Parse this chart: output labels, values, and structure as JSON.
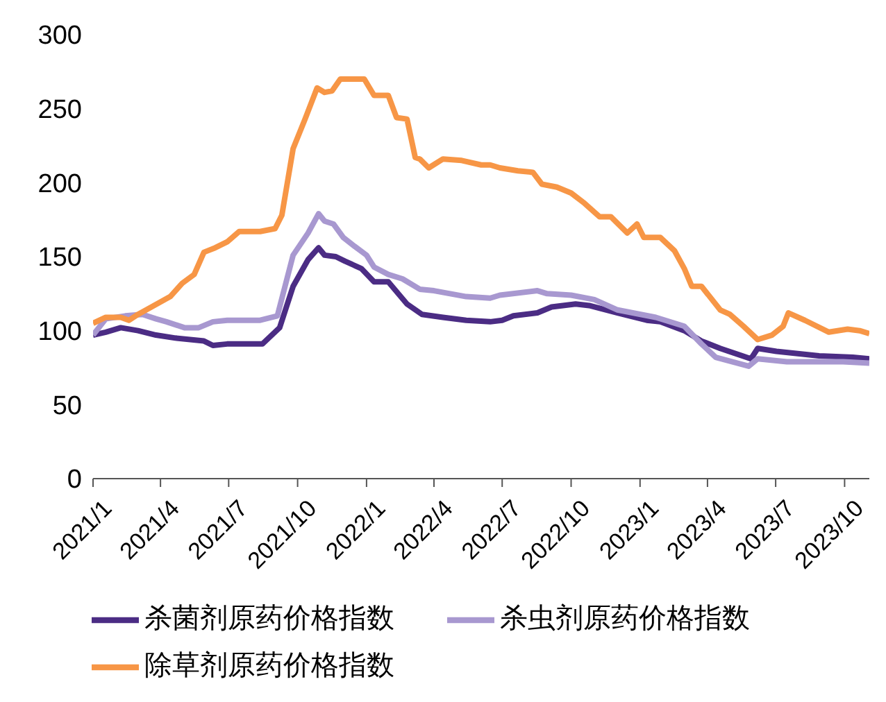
{
  "chart_data": {
    "type": "line",
    "legend": "bottom",
    "marker": "none",
    "line_style": "solid",
    "xlim": [
      "2021-01-01",
      "2023-11-03"
    ],
    "xticks": [
      {
        "value": "2021-01",
        "label": "2021/1"
      },
      {
        "value": "2021-04",
        "label": "2021/4"
      },
      {
        "value": "2021-07",
        "label": "2021/7"
      },
      {
        "value": "2021-10",
        "label": "2021/10"
      },
      {
        "value": "2022-01",
        "label": "2022/1"
      },
      {
        "value": "2022-04",
        "label": "2022/4"
      },
      {
        "value": "2022-07",
        "label": "2022/7"
      },
      {
        "value": "2022-10",
        "label": "2022/10"
      },
      {
        "value": "2023-01",
        "label": "2023/1"
      },
      {
        "value": "2023-04",
        "label": "2023/4"
      },
      {
        "value": "2023-07",
        "label": "2023/7"
      },
      {
        "value": "2023-10",
        "label": "2023/10"
      }
    ],
    "ylim": [
      0,
      300
    ],
    "yticks": [
      0,
      50,
      100,
      150,
      200,
      250,
      300
    ],
    "series": [
      {
        "name": "杀菌剂原药价格指数",
        "color": "#4b2c84",
        "x": [
          "2021-01-01",
          "2021-01-18",
          "2021-02-07",
          "2021-03-02",
          "2021-03-26",
          "2021-04-21",
          "2021-05-29",
          "2021-06-10",
          "2021-06-29",
          "2021-08-15",
          "2021-09-07",
          "2021-09-25",
          "2021-10-15",
          "2021-10-29",
          "2021-11-06",
          "2021-11-21",
          "2021-12-03",
          "2021-12-25",
          "2022-01-11",
          "2022-01-30",
          "2022-02-24",
          "2022-03-16",
          "2022-04-13",
          "2022-05-14",
          "2022-06-15",
          "2022-07-01",
          "2022-07-16",
          "2022-08-17",
          "2022-09-05",
          "2022-10-07",
          "2022-10-25",
          "2022-12-02",
          "2023-01-10",
          "2023-01-28",
          "2023-03-01",
          "2023-03-24",
          "2023-04-18",
          "2023-05-29",
          "2023-06-07",
          "2023-07-02",
          "2023-08-28",
          "2023-10-12",
          "2023-11-03"
        ],
        "values": [
          97,
          99,
          102,
          100,
          97,
          95,
          93,
          90,
          91,
          91,
          102,
          130,
          148,
          156,
          151,
          150,
          147,
          142,
          133,
          133,
          118,
          111,
          109,
          107,
          106,
          107,
          110,
          112,
          116,
          118,
          117,
          112,
          107,
          106,
          100,
          93,
          88,
          81,
          88,
          86,
          83,
          82,
          81
        ]
      },
      {
        "name": "杀虫剂原药价格指数",
        "color": "#a898d0",
        "x": [
          "2021-01-01",
          "2021-01-18",
          "2021-02-13",
          "2021-03-08",
          "2021-03-26",
          "2021-04-09",
          "2021-05-03",
          "2021-05-22",
          "2021-06-10",
          "2021-06-29",
          "2021-08-12",
          "2021-09-04",
          "2021-09-25",
          "2021-10-15",
          "2021-10-29",
          "2021-11-06",
          "2021-11-18",
          "2021-12-01",
          "2021-12-16",
          "2022-01-01",
          "2022-01-11",
          "2022-01-30",
          "2022-02-18",
          "2022-03-13",
          "2022-04-01",
          "2022-05-14",
          "2022-06-15",
          "2022-06-28",
          "2022-08-17",
          "2022-08-30",
          "2022-10-01",
          "2022-11-01",
          "2022-12-02",
          "2023-01-22",
          "2023-03-01",
          "2023-03-24",
          "2023-04-12",
          "2023-05-26",
          "2023-06-07",
          "2023-07-16",
          "2023-09-29",
          "2023-11-03"
        ],
        "values": [
          97,
          108,
          110,
          111,
          108,
          106,
          102,
          102,
          106,
          107,
          107,
          110,
          151,
          166,
          179,
          174,
          172,
          163,
          157,
          151,
          143,
          138,
          135,
          128,
          127,
          123,
          122,
          124,
          127,
          125,
          124,
          121,
          114,
          109,
          103,
          91,
          82,
          76,
          81,
          79,
          79,
          78
        ]
      },
      {
        "name": "除草剂原药价格指数",
        "color": "#f79646",
        "x": [
          "2021-01-01",
          "2021-01-18",
          "2021-02-07",
          "2021-02-18",
          "2021-03-02",
          "2021-03-20",
          "2021-04-14",
          "2021-04-30",
          "2021-05-16",
          "2021-05-29",
          "2021-06-13",
          "2021-06-29",
          "2021-07-15",
          "2021-08-12",
          "2021-09-01",
          "2021-09-10",
          "2021-09-25",
          "2021-10-11",
          "2021-10-27",
          "2021-11-06",
          "2021-11-16",
          "2021-11-27",
          "2021-12-29",
          "2022-01-11",
          "2022-01-30",
          "2022-02-10",
          "2022-02-24",
          "2022-03-07",
          "2022-03-13",
          "2022-03-25",
          "2022-04-13",
          "2022-05-08",
          "2022-06-03",
          "2022-06-15",
          "2022-06-28",
          "2022-07-22",
          "2022-08-11",
          "2022-08-23",
          "2022-09-12",
          "2022-10-01",
          "2022-10-19",
          "2022-11-08",
          "2022-11-23",
          "2022-12-15",
          "2022-12-28",
          "2023-01-06",
          "2023-01-28",
          "2023-02-16",
          "2023-03-01",
          "2023-03-11",
          "2023-03-24",
          "2023-04-18",
          "2023-05-01",
          "2023-05-19",
          "2023-06-07",
          "2023-06-26",
          "2023-07-11",
          "2023-07-18",
          "2023-08-09",
          "2023-09-10",
          "2023-10-05",
          "2023-10-21",
          "2023-11-03"
        ],
        "values": [
          105,
          109,
          109,
          107,
          111,
          116,
          123,
          132,
          138,
          153,
          156,
          160,
          167,
          167,
          169,
          178,
          223,
          243,
          264,
          261,
          262,
          270,
          270,
          259,
          259,
          244,
          243,
          217,
          216,
          210,
          216,
          215,
          212,
          212,
          210,
          208,
          207,
          199,
          197,
          193,
          186,
          177,
          177,
          166,
          172,
          163,
          163,
          154,
          142,
          130,
          130,
          114,
          111,
          103,
          94,
          97,
          103,
          112,
          107,
          99,
          101,
          100,
          98
        ]
      }
    ]
  }
}
